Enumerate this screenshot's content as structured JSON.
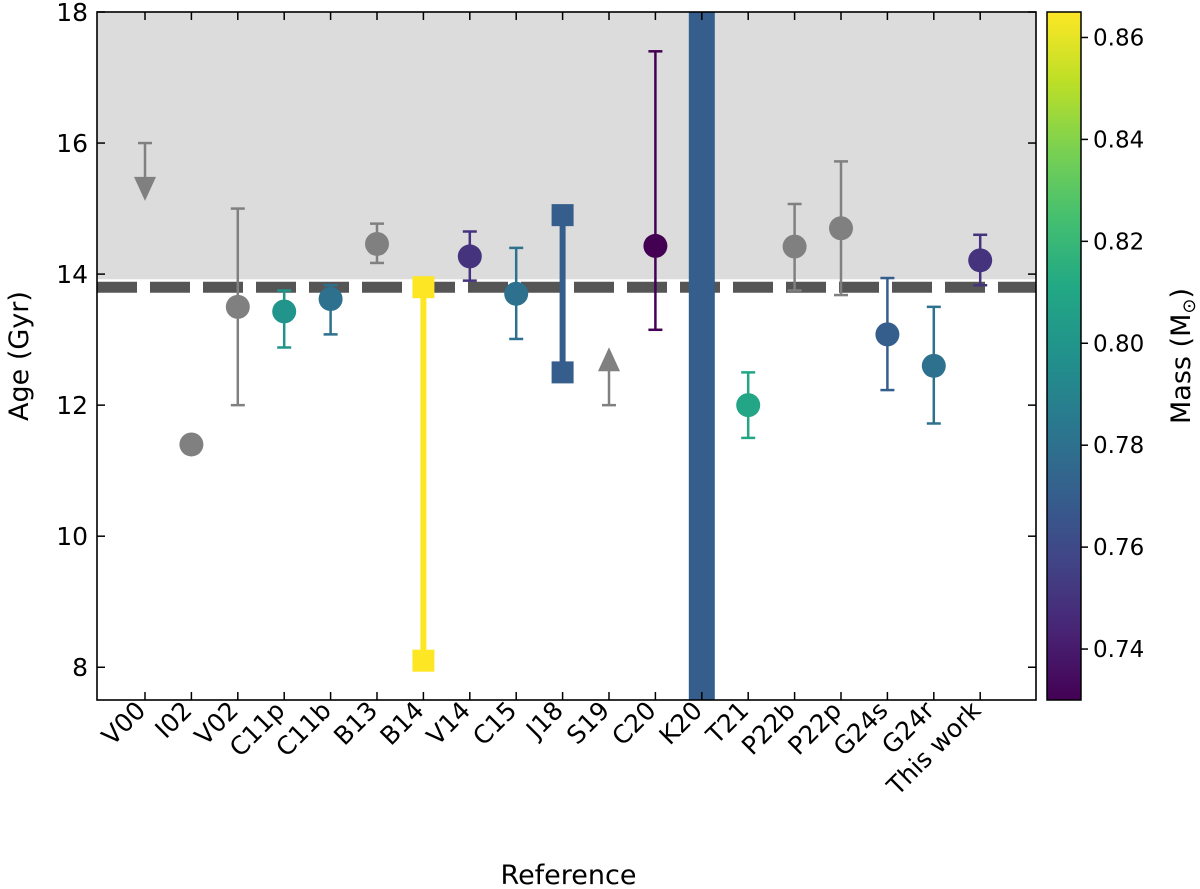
{
  "chart_data": {
    "type": "scatter",
    "xlabel": "Reference",
    "ylabel": "Age (Gyr)",
    "ylim": [
      7.5,
      18
    ],
    "y_ticks": [
      "8",
      "10",
      "12",
      "14",
      "16",
      "18"
    ],
    "categories": [
      "V00",
      "I02",
      "V02",
      "C11p",
      "C11b",
      "B13",
      "B14",
      "V14",
      "C15",
      "J18",
      "S19",
      "C20",
      "K20",
      "T21",
      "P22b",
      "P22p",
      "G24s",
      "G24r",
      "This work"
    ],
    "reference_age": 13.8,
    "shaded_region": [
      13.8,
      18
    ],
    "colorbar": {
      "label": "Mass (M",
      "label_subscript": "⊙",
      "label_close": ")",
      "range": [
        0.73,
        0.865
      ],
      "ticks": [
        "0.74",
        "0.76",
        "0.78",
        "0.80",
        "0.82",
        "0.84",
        "0.86"
      ],
      "colormap": "viridis"
    },
    "points": [
      {
        "ref": "V00",
        "kind": "upper_limit",
        "value": 15.3,
        "cap": 16.0,
        "mass": null
      },
      {
        "ref": "I02",
        "kind": "point",
        "value": 11.4,
        "mass": null
      },
      {
        "ref": "V02",
        "kind": "point",
        "value": 13.5,
        "low": 12.0,
        "high": 15.0,
        "mass": null
      },
      {
        "ref": "C11p",
        "kind": "point",
        "value": 13.43,
        "low": 12.88,
        "high": 13.75,
        "mass": 0.8
      },
      {
        "ref": "C11b",
        "kind": "point",
        "value": 13.62,
        "low": 13.08,
        "high": 13.83,
        "mass": 0.78
      },
      {
        "ref": "B13",
        "kind": "point",
        "value": 14.46,
        "low": 14.17,
        "high": 14.77,
        "mass": null
      },
      {
        "ref": "B14",
        "kind": "range",
        "low": 8.1,
        "high": 13.8,
        "mass": 0.865
      },
      {
        "ref": "V14",
        "kind": "point",
        "value": 14.27,
        "low": 13.9,
        "high": 14.65,
        "mass": 0.75
      },
      {
        "ref": "C15",
        "kind": "point",
        "value": 13.7,
        "low": 13.01,
        "high": 14.4,
        "mass": 0.78
      },
      {
        "ref": "J18",
        "kind": "range",
        "low": 12.5,
        "high": 14.9,
        "mass": 0.77
      },
      {
        "ref": "S19",
        "kind": "lower_limit",
        "value": 12.7,
        "cap": 12.0,
        "mass": null
      },
      {
        "ref": "C20",
        "kind": "point",
        "value": 14.43,
        "low": 13.15,
        "high": 17.4,
        "mass": 0.73
      },
      {
        "ref": "K20",
        "kind": "band",
        "low": 7.5,
        "high": 18,
        "mass": 0.77
      },
      {
        "ref": "T21",
        "kind": "point",
        "value": 12.0,
        "low": 11.5,
        "high": 12.5,
        "mass": 0.81
      },
      {
        "ref": "P22b",
        "kind": "point",
        "value": 14.42,
        "low": 13.75,
        "high": 15.07,
        "mass": null
      },
      {
        "ref": "P22p",
        "kind": "point",
        "value": 14.7,
        "low": 13.68,
        "high": 15.72,
        "mass": null
      },
      {
        "ref": "G24s",
        "kind": "point",
        "value": 13.08,
        "low": 12.23,
        "high": 13.94,
        "mass": 0.77
      },
      {
        "ref": "G24r",
        "kind": "point",
        "value": 12.6,
        "low": 11.72,
        "high": 13.5,
        "mass": 0.78
      },
      {
        "ref": "This work",
        "kind": "point",
        "value": 14.21,
        "low": 13.83,
        "high": 14.6,
        "mass": 0.75
      }
    ],
    "colors": {
      "no_mass": "#808080",
      "shade": "#dcdcdc",
      "reference_line": "#555555"
    }
  }
}
